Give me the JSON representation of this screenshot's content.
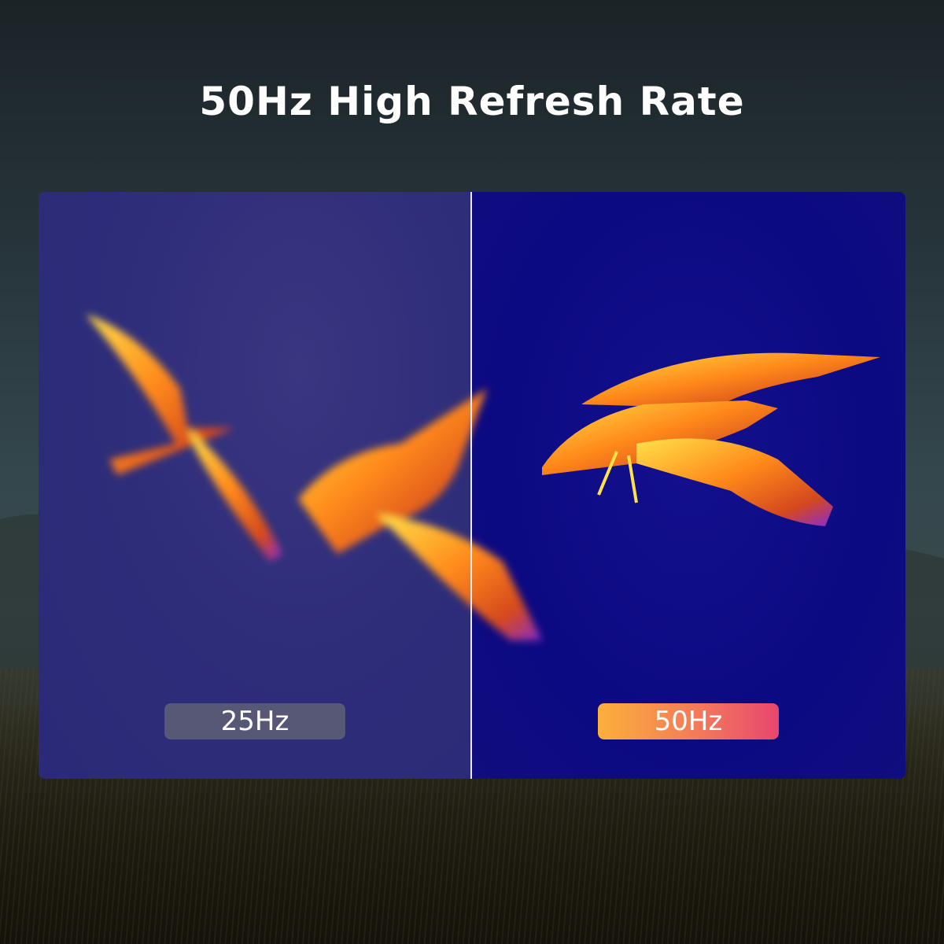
{
  "title": "50Hz High Refresh Rate",
  "comparison": {
    "left_label": "25Hz",
    "right_label": "50Hz"
  },
  "colors": {
    "badge_left": "#565876",
    "badge_right_start": "#fbb03b",
    "badge_right_end": "#e8466e",
    "thermal_bg_left": "#2e2d7a",
    "thermal_bg_right": "#0c0a82"
  }
}
